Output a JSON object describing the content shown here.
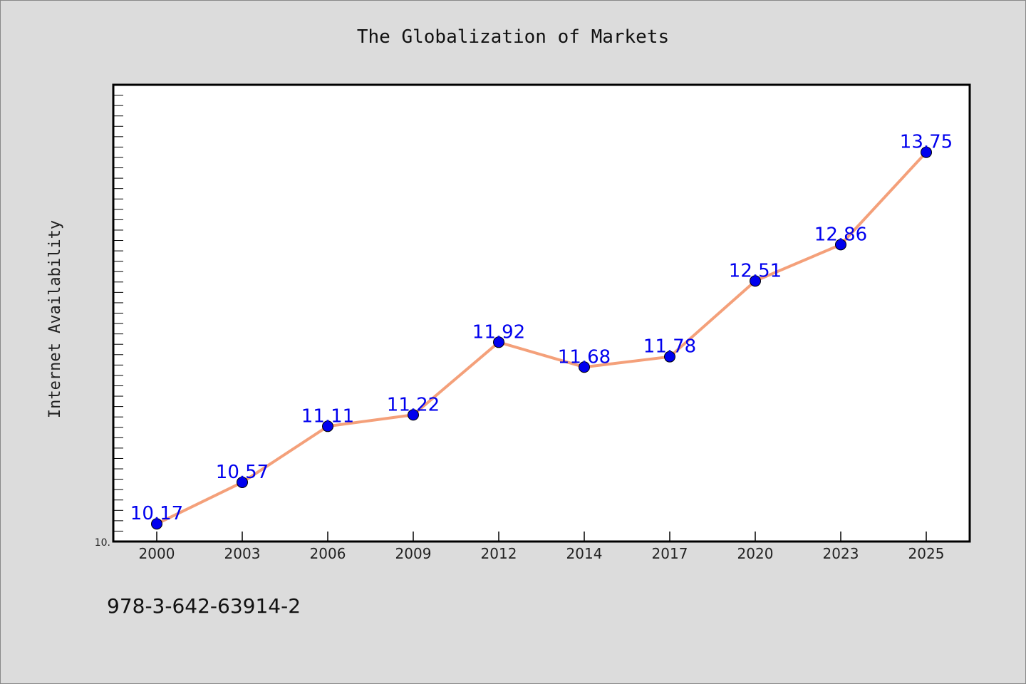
{
  "chart_data": {
    "type": "line",
    "title": "The Globalization of Markets",
    "xlabel": "",
    "ylabel": "Internet Availability",
    "categories": [
      "2000",
      "2003",
      "2006",
      "2009",
      "2012",
      "2014",
      "2017",
      "2020",
      "2023",
      "2025"
    ],
    "series": [
      {
        "values": [
          10.17,
          10.57,
          11.11,
          11.22,
          11.92,
          11.68,
          11.78,
          12.51,
          12.86,
          13.75
        ],
        "labels": [
          "10.17",
          "10.57",
          "11.11",
          "11.22",
          "11.92",
          "11.68",
          "11.78",
          "12.51",
          "12.86",
          "13.75"
        ],
        "line_color": "#f4a07a",
        "marker_color": "#0000ee",
        "label_color": "#0000ee"
      }
    ],
    "ylim": [
      10.0,
      14.4
    ],
    "y_tick_labels": [
      "10."
    ],
    "grid": false,
    "legend": "none"
  },
  "footer": {
    "code": "978-3-642-63914-2"
  }
}
